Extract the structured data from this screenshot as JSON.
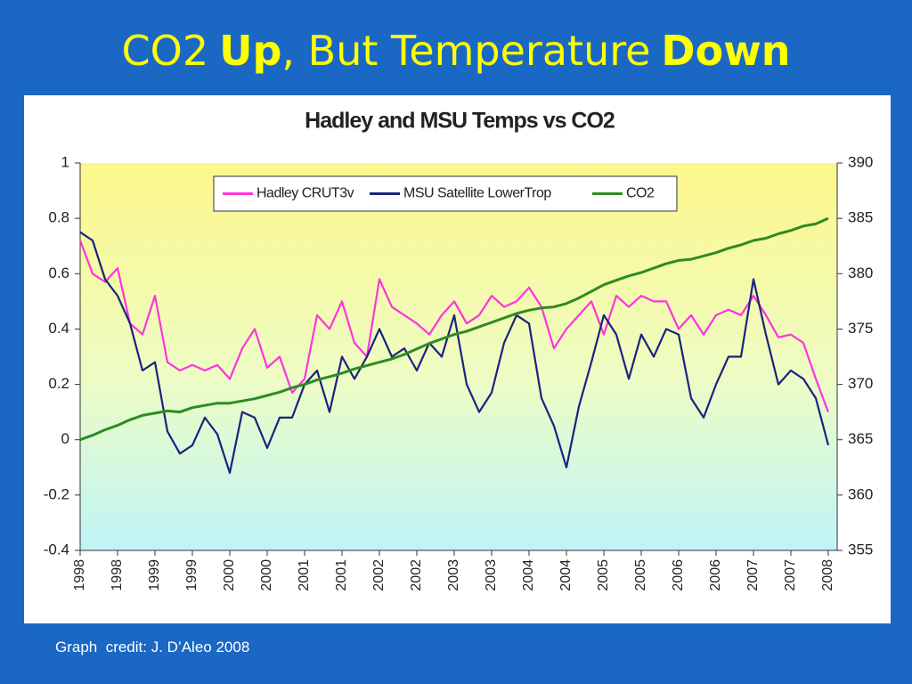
{
  "slide_title": [
    {
      "text": "CO2",
      "bold": false
    },
    {
      "text": "Up",
      "bold": true
    },
    {
      "text": ", But Temperature",
      "bold": false
    },
    {
      "text": "Down",
      "bold": true
    }
  ],
  "footer": "Graph  credit: J. D’Aleo 2008",
  "chart_data": {
    "type": "line",
    "title": "Hadley and MSU Temps vs CO2",
    "categories": [
      "1998",
      null,
      null,
      "1998",
      null,
      null,
      "1999",
      null,
      null,
      "1999",
      null,
      null,
      "2000",
      null,
      null,
      "2000",
      null,
      null,
      "2001",
      null,
      null,
      "2001",
      null,
      null,
      "2002",
      null,
      null,
      "2002",
      null,
      null,
      "2003",
      null,
      null,
      "2003",
      null,
      null,
      "2004",
      null,
      null,
      "2004",
      null,
      null,
      "2005",
      null,
      null,
      "2005",
      null,
      null,
      "2006",
      null,
      null,
      "2006",
      null,
      null,
      "2007",
      null,
      null,
      "2007",
      null,
      null,
      "2008"
    ],
    "series": [
      {
        "name": "Hadley CRUT3v",
        "color": "#ff33dd",
        "values": [
          0.72,
          0.6,
          0.57,
          0.62,
          0.42,
          0.38,
          0.52,
          0.28,
          0.25,
          0.27,
          0.25,
          0.27,
          0.22,
          0.33,
          0.4,
          0.26,
          0.3,
          0.17,
          0.22,
          0.45,
          0.4,
          0.5,
          0.35,
          0.3,
          0.58,
          0.48,
          0.45,
          0.42,
          0.38,
          0.45,
          0.5,
          0.42,
          0.45,
          0.52,
          0.48,
          0.5,
          0.55,
          0.48,
          0.33,
          0.4,
          0.45,
          0.5,
          0.38,
          0.52,
          0.48,
          0.52,
          0.5,
          0.5,
          0.4,
          0.45,
          0.38,
          0.45,
          0.47,
          0.45,
          0.52,
          0.45,
          0.37,
          0.38,
          0.35,
          0.22,
          0.1
        ]
      },
      {
        "name": "MSU Satellite LowerTrop",
        "color": "#1a237e",
        "values": [
          0.75,
          0.72,
          0.58,
          0.52,
          0.42,
          0.25,
          0.28,
          0.03,
          -0.05,
          -0.02,
          0.08,
          0.02,
          -0.12,
          0.1,
          0.08,
          -0.03,
          0.08,
          0.08,
          0.2,
          0.25,
          0.1,
          0.3,
          0.22,
          0.3,
          0.4,
          0.3,
          0.33,
          0.25,
          0.35,
          0.3,
          0.45,
          0.2,
          0.1,
          0.17,
          0.35,
          0.45,
          0.42,
          0.15,
          0.05,
          -0.1,
          0.12,
          0.28,
          0.45,
          0.38,
          0.22,
          0.38,
          0.3,
          0.4,
          0.38,
          0.15,
          0.08,
          0.2,
          0.3,
          0.3,
          0.58,
          0.38,
          0.2,
          0.25,
          0.22,
          0.15,
          -0.02
        ]
      },
      {
        "name": "CO2",
        "color": "#2e8b22",
        "axis": "y2",
        "values": [
          365.0,
          365.4,
          365.9,
          366.3,
          366.8,
          367.2,
          367.4,
          367.6,
          367.5,
          367.9,
          368.1,
          368.3,
          368.3,
          368.5,
          368.7,
          369.0,
          369.3,
          369.7,
          370.0,
          370.4,
          370.7,
          371.0,
          371.4,
          371.7,
          372.0,
          372.3,
          372.7,
          373.2,
          373.7,
          374.1,
          374.5,
          374.8,
          375.2,
          375.6,
          376.0,
          376.4,
          376.7,
          376.9,
          377.0,
          377.3,
          377.8,
          378.4,
          379.0,
          379.4,
          379.8,
          380.1,
          380.5,
          380.9,
          381.2,
          381.3,
          381.6,
          381.9,
          382.3,
          382.6,
          383.0,
          383.2,
          383.6,
          383.9,
          384.3,
          384.5,
          385.0
        ]
      }
    ],
    "ylim": [
      -0.4,
      1
    ],
    "yticks": [
      -0.4,
      -0.2,
      0,
      0.2,
      0.4,
      0.6,
      0.8,
      1
    ],
    "y2lim": [
      355,
      390
    ],
    "y2ticks": [
      355,
      360,
      365,
      370,
      375,
      380,
      385,
      390
    ],
    "grid": false,
    "legend": "top"
  }
}
